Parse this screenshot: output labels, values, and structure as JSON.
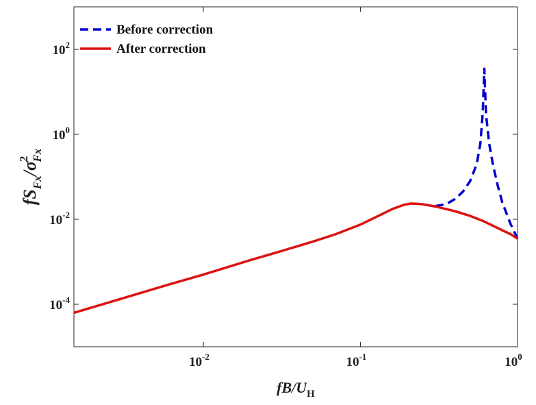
{
  "chart_data": {
    "type": "line",
    "title": "",
    "x_scale": "log",
    "y_scale": "log",
    "xlim": [
      0.0015,
      1
    ],
    "ylim": [
      1e-05,
      1000
    ],
    "grid": false,
    "legend_position": "top-left",
    "xlabel": {
      "italic": "fB/U",
      "subscript": "H"
    },
    "ylabel": {
      "numerator": "fS",
      "numerator_subscript": "Fx",
      "slash": "/",
      "denominator": "σ",
      "denominator_superscript": "2",
      "denominator_subscript": "Fx"
    },
    "x_ticks": [
      {
        "value": 0.01,
        "base": "10",
        "exp": "-2"
      },
      {
        "value": 0.1,
        "base": "10",
        "exp": "-1"
      },
      {
        "value": 1,
        "base": "10",
        "exp": "0"
      }
    ],
    "y_ticks": [
      {
        "value": 0.0001,
        "base": "10",
        "exp": "-4"
      },
      {
        "value": 0.01,
        "base": "10",
        "exp": "-2"
      },
      {
        "value": 1,
        "base": "10",
        "exp": "0"
      },
      {
        "value": 100,
        "base": "10",
        "exp": "2"
      }
    ],
    "series": [
      {
        "name": "Before correction",
        "color": "#0000cc",
        "dash": "dashed",
        "x": [
          0.3,
          0.35,
          0.4,
          0.45,
          0.5,
          0.55,
          0.58,
          0.6,
          0.61,
          0.615,
          0.62,
          0.63,
          0.66,
          0.7,
          0.75,
          0.8,
          0.9,
          1.0
        ],
        "y": [
          0.0205,
          0.0225,
          0.03,
          0.045,
          0.08,
          0.2,
          0.6,
          3.0,
          15,
          35,
          15,
          3.0,
          0.6,
          0.18,
          0.06,
          0.025,
          0.008,
          0.0035
        ]
      },
      {
        "name": "After correction",
        "color": "#dd1111",
        "dash": "solid",
        "x": [
          0.0015,
          0.003,
          0.006,
          0.01,
          0.02,
          0.03,
          0.05,
          0.07,
          0.1,
          0.13,
          0.16,
          0.19,
          0.21,
          0.23,
          0.25,
          0.3,
          0.4,
          0.5,
          0.6,
          0.7,
          0.8,
          0.9,
          1.0
        ],
        "y": [
          6.3e-05,
          0.000135,
          0.00029,
          0.0005,
          0.0011,
          0.0017,
          0.003,
          0.0045,
          0.0075,
          0.012,
          0.0175,
          0.022,
          0.0235,
          0.0232,
          0.0225,
          0.02,
          0.0155,
          0.012,
          0.0092,
          0.007,
          0.0055,
          0.0045,
          0.0035
        ]
      }
    ]
  }
}
